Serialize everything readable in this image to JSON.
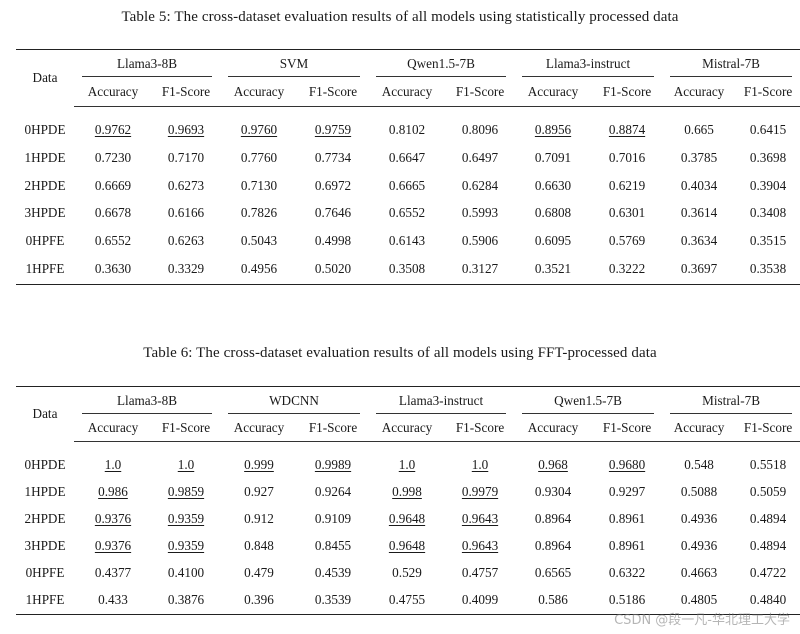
{
  "table5": {
    "caption": "Table 5:  The cross-dataset evaluation results of all models using statistically processed data",
    "data_header": "Data",
    "models": [
      "Llama3-8B",
      "SVM",
      "Qwen1.5-7B",
      "Llama3-instruct",
      "Mistral-7B"
    ],
    "metrics": [
      "Accuracy",
      "F1-Score"
    ],
    "rows": [
      {
        "label": "0HPDE",
        "values": [
          "0.9762",
          "0.9693",
          "0.9760",
          "0.9759",
          "0.8102",
          "0.8096",
          "0.8956",
          "0.8874",
          "0.665",
          "0.6415"
        ],
        "best": [
          true,
          true,
          true,
          true,
          false,
          false,
          true,
          true,
          false,
          false
        ]
      },
      {
        "label": "1HPDE",
        "values": [
          "0.7230",
          "0.7170",
          "0.7760",
          "0.7734",
          "0.6647",
          "0.6497",
          "0.7091",
          "0.7016",
          "0.3785",
          "0.3698"
        ],
        "best": [
          false,
          false,
          false,
          false,
          false,
          false,
          false,
          false,
          false,
          false
        ]
      },
      {
        "label": "2HPDE",
        "values": [
          "0.6669",
          "0.6273",
          "0.7130",
          "0.6972",
          "0.6665",
          "0.6284",
          "0.6630",
          "0.6219",
          "0.4034",
          "0.3904"
        ],
        "best": [
          false,
          false,
          false,
          false,
          false,
          false,
          false,
          false,
          false,
          false
        ]
      },
      {
        "label": "3HPDE",
        "values": [
          "0.6678",
          "0.6166",
          "0.7826",
          "0.7646",
          "0.6552",
          "0.5993",
          "0.6808",
          "0.6301",
          "0.3614",
          "0.3408"
        ],
        "best": [
          false,
          false,
          false,
          false,
          false,
          false,
          false,
          false,
          false,
          false
        ]
      },
      {
        "label": "0HPFE",
        "values": [
          "0.6552",
          "0.6263",
          "0.5043",
          "0.4998",
          "0.6143",
          "0.5906",
          "0.6095",
          "0.5769",
          "0.3634",
          "0.3515"
        ],
        "best": [
          false,
          false,
          false,
          false,
          false,
          false,
          false,
          false,
          false,
          false
        ]
      },
      {
        "label": "1HPFE",
        "values": [
          "0.3630",
          "0.3329",
          "0.4956",
          "0.5020",
          "0.3508",
          "0.3127",
          "0.3521",
          "0.3222",
          "0.3697",
          "0.3538"
        ],
        "best": [
          false,
          false,
          false,
          false,
          false,
          false,
          false,
          false,
          false,
          false
        ]
      }
    ]
  },
  "table6": {
    "caption": "Table 6:  The cross-dataset evaluation results of all models using FFT-processed data",
    "data_header": "Data",
    "models": [
      "Llama3-8B",
      "WDCNN",
      "Llama3-instruct",
      "Qwen1.5-7B",
      "Mistral-7B"
    ],
    "metrics": [
      "Accuracy",
      "F1-Score"
    ],
    "rows": [
      {
        "label": "0HPDE",
        "values": [
          "1.0",
          "1.0",
          "0.999",
          "0.9989",
          "1.0",
          "1.0",
          "0.968",
          "0.9680",
          "0.548",
          "0.5518"
        ],
        "best": [
          true,
          true,
          true,
          true,
          true,
          true,
          true,
          true,
          false,
          false
        ]
      },
      {
        "label": "1HPDE",
        "values": [
          "0.986",
          "0.9859",
          "0.927",
          "0.9264",
          "0.998",
          "0.9979",
          "0.9304",
          "0.9297",
          "0.5088",
          "0.5059"
        ],
        "best": [
          true,
          true,
          false,
          false,
          true,
          true,
          false,
          false,
          false,
          false
        ]
      },
      {
        "label": "2HPDE",
        "values": [
          "0.9376",
          "0.9359",
          "0.912",
          "0.9109",
          "0.9648",
          "0.9643",
          "0.8964",
          "0.8961",
          "0.4936",
          "0.4894"
        ],
        "best": [
          true,
          true,
          false,
          false,
          true,
          true,
          false,
          false,
          false,
          false
        ]
      },
      {
        "label": "3HPDE",
        "values": [
          "0.9376",
          "0.9359",
          "0.848",
          "0.8455",
          "0.9648",
          "0.9643",
          "0.8964",
          "0.8961",
          "0.4936",
          "0.4894"
        ],
        "best": [
          true,
          true,
          false,
          false,
          true,
          true,
          false,
          false,
          false,
          false
        ]
      },
      {
        "label": "0HPFE",
        "values": [
          "0.4377",
          "0.4100",
          "0.479",
          "0.4539",
          "0.529",
          "0.4757",
          "0.6565",
          "0.6322",
          "0.4663",
          "0.4722"
        ],
        "best": [
          false,
          false,
          false,
          false,
          false,
          false,
          false,
          false,
          false,
          false
        ]
      },
      {
        "label": "1HPFE",
        "values": [
          "0.433",
          "0.3876",
          "0.396",
          "0.3539",
          "0.4755",
          "0.4099",
          "0.586",
          "0.5186",
          "0.4805",
          "0.4840"
        ],
        "best": [
          false,
          false,
          false,
          false,
          false,
          false,
          false,
          false,
          false,
          false
        ]
      }
    ]
  },
  "chart_data": [
    {
      "type": "table",
      "title": "Table 5:  The cross-dataset evaluation results of all models using statistically processed data",
      "columns": [
        "Data",
        "Llama3-8B Accuracy",
        "Llama3-8B F1-Score",
        "SVM Accuracy",
        "SVM F1-Score",
        "Qwen1.5-7B Accuracy",
        "Qwen1.5-7B F1-Score",
        "Llama3-instruct Accuracy",
        "Llama3-instruct F1-Score",
        "Mistral-7B Accuracy",
        "Mistral-7B F1-Score"
      ],
      "rows": [
        [
          "0HPDE",
          0.9762,
          0.9693,
          0.976,
          0.9759,
          0.8102,
          0.8096,
          0.8956,
          0.8874,
          0.665,
          0.6415
        ],
        [
          "1HPDE",
          0.723,
          0.717,
          0.776,
          0.7734,
          0.6647,
          0.6497,
          0.7091,
          0.7016,
          0.3785,
          0.3698
        ],
        [
          "2HPDE",
          0.6669,
          0.6273,
          0.713,
          0.6972,
          0.6665,
          0.6284,
          0.663,
          0.6219,
          0.4034,
          0.3904
        ],
        [
          "3HPDE",
          0.6678,
          0.6166,
          0.7826,
          0.7646,
          0.6552,
          0.5993,
          0.6808,
          0.6301,
          0.3614,
          0.3408
        ],
        [
          "0HPFE",
          0.6552,
          0.6263,
          0.5043,
          0.4998,
          0.6143,
          0.5906,
          0.6095,
          0.5769,
          0.3634,
          0.3515
        ],
        [
          "1HPFE",
          0.363,
          0.3329,
          0.4956,
          0.502,
          0.3508,
          0.3127,
          0.3521,
          0.3222,
          0.3697,
          0.3538
        ]
      ]
    },
    {
      "type": "table",
      "title": "Table 6:  The cross-dataset evaluation results of all models using FFT-processed data",
      "columns": [
        "Data",
        "Llama3-8B Accuracy",
        "Llama3-8B F1-Score",
        "WDCNN Accuracy",
        "WDCNN F1-Score",
        "Llama3-instruct Accuracy",
        "Llama3-instruct F1-Score",
        "Qwen1.5-7B Accuracy",
        "Qwen1.5-7B F1-Score",
        "Mistral-7B Accuracy",
        "Mistral-7B F1-Score"
      ],
      "rows": [
        [
          "0HPDE",
          1.0,
          1.0,
          0.999,
          0.9989,
          1.0,
          1.0,
          0.968,
          0.968,
          0.548,
          0.5518
        ],
        [
          "1HPDE",
          0.986,
          0.9859,
          0.927,
          0.9264,
          0.998,
          0.9979,
          0.9304,
          0.9297,
          0.5088,
          0.5059
        ],
        [
          "2HPDE",
          0.9376,
          0.9359,
          0.912,
          0.9109,
          0.9648,
          0.9643,
          0.8964,
          0.8961,
          0.4936,
          0.4894
        ],
        [
          "3HPDE",
          0.9376,
          0.9359,
          0.848,
          0.8455,
          0.9648,
          0.9643,
          0.8964,
          0.8961,
          0.4936,
          0.4894
        ],
        [
          "0HPFE",
          0.4377,
          0.41,
          0.479,
          0.4539,
          0.529,
          0.4757,
          0.6565,
          0.6322,
          0.4663,
          0.4722
        ],
        [
          "1HPFE",
          0.433,
          0.3876,
          0.396,
          0.3539,
          0.4755,
          0.4099,
          0.586,
          0.5186,
          0.4805,
          0.484
        ]
      ]
    }
  ],
  "watermark": "CSDN @段一凡-华北理工大学"
}
